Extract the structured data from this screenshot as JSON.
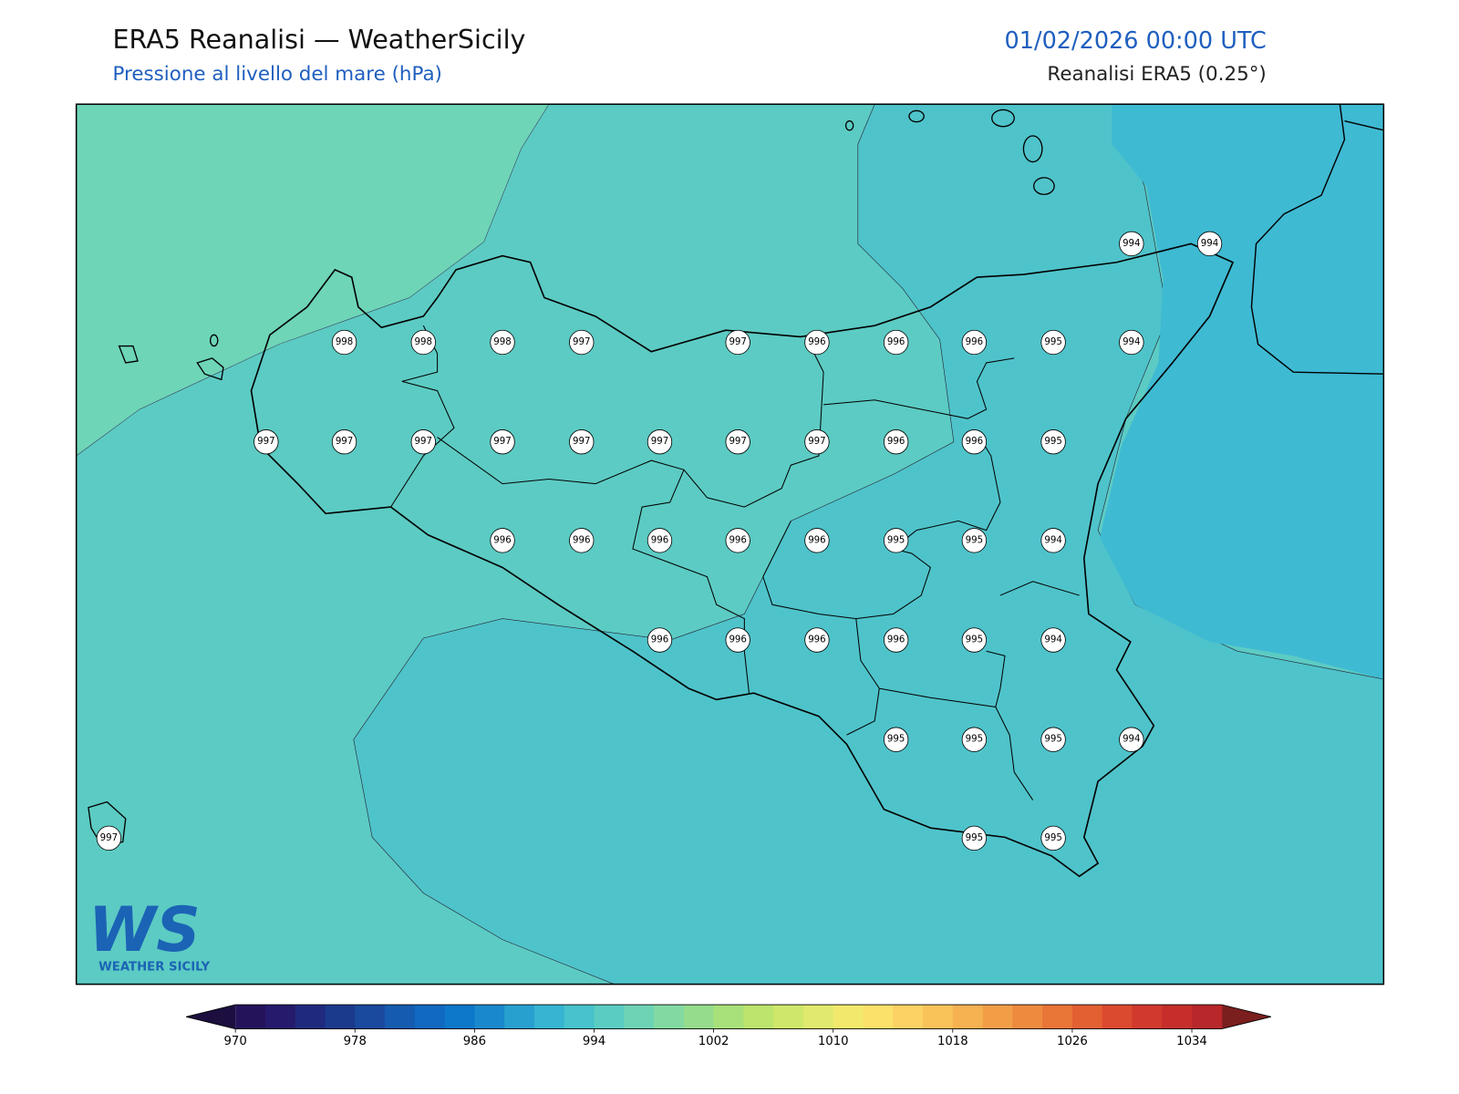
{
  "header": {
    "title": "ERA5 Reanalisi — WeatherSicily",
    "subtitle": "Pressione al livello del mare (hPa)",
    "date": "01/02/2026 00:00 UTC",
    "source": "Reanalisi ERA5 (0.25°)"
  },
  "stations": [
    994,
    994,
    998,
    998,
    998,
    997,
    997,
    996,
    996,
    996,
    995,
    994,
    997,
    997,
    997,
    997,
    997,
    997,
    997,
    997,
    996,
    996,
    995,
    996,
    996,
    996,
    996,
    996,
    995,
    995,
    994,
    996,
    996,
    996,
    996,
    995,
    994,
    995,
    995,
    995,
    994,
    997,
    995,
    995
  ],
  "colorbar": {
    "range": [
      970,
      1036
    ],
    "ticks": [
      970,
      978,
      986,
      994,
      1002,
      1010,
      1018,
      1026,
      1034
    ],
    "under_color": "#1c0f3f",
    "over_color": "#7a1e1e",
    "colors": [
      "#24135a",
      "#251a6b",
      "#1f2a7e",
      "#1b3a8c",
      "#1a4a9e",
      "#155bb0",
      "#1169c0",
      "#0d77c8",
      "#1a88cc",
      "#27a0d0",
      "#36b4d2",
      "#48c2cc",
      "#5accc2",
      "#6ed3b5",
      "#82d9a2",
      "#95dc8c",
      "#a8e07a",
      "#bde46d",
      "#cfe86b",
      "#e1ea6e",
      "#f2e96c",
      "#fbe06a",
      "#fbd263",
      "#f9c35a",
      "#f6b150",
      "#f29e47",
      "#ee8a3e",
      "#e97537",
      "#e26032",
      "#db4a2f",
      "#d1392d",
      "#c62e2c",
      "#b8272a"
    ]
  },
  "logo": {
    "mark": "WS",
    "name": "WEATHER SICILY"
  }
}
